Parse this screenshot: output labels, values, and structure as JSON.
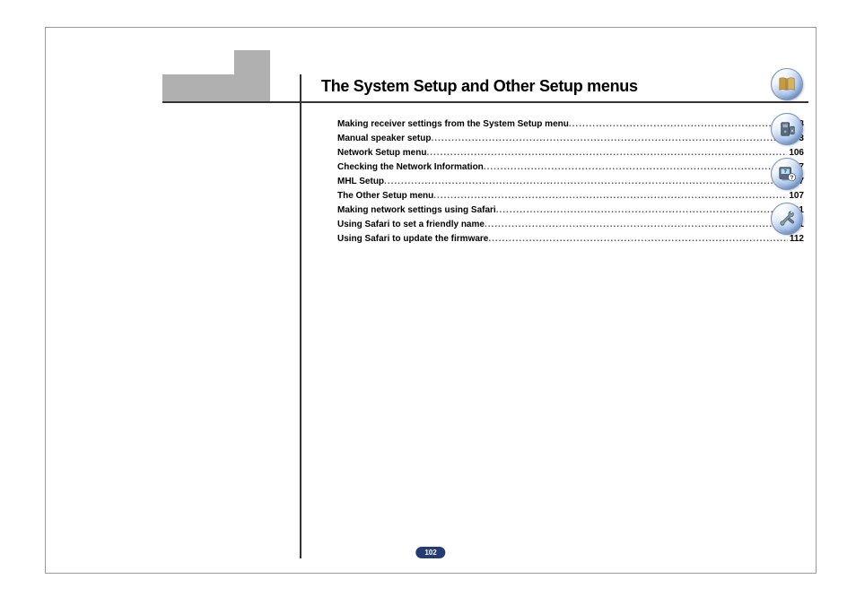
{
  "title": "The System Setup and Other Setup menus",
  "page_number": "102",
  "toc": [
    {
      "label": "Making receiver settings from the System Setup menu",
      "page": "103"
    },
    {
      "label": "Manual speaker setup",
      "page": "103"
    },
    {
      "label": "Network Setup menu",
      "page": "106"
    },
    {
      "label": "Checking the Network Information",
      "page": "107"
    },
    {
      "label": "MHL Setup",
      "page": "107"
    },
    {
      "label": "The Other Setup menu",
      "page": "107"
    },
    {
      "label": "Making network settings using Safari",
      "page": "111"
    },
    {
      "label": "Using Safari to set a friendly name",
      "page": "111"
    },
    {
      "label": "Using Safari to update the firmware",
      "page": "112"
    }
  ],
  "colors": {
    "tab": "#b0b0b0",
    "rule": "#333333",
    "badge_bg": "#243b73",
    "icon_gradient_light": "#e8f0fb",
    "icon_gradient_dark": "#6f9bd8"
  },
  "side_icons": [
    {
      "name": "book-icon"
    },
    {
      "name": "device-icon"
    },
    {
      "name": "help-icon"
    },
    {
      "name": "tools-icon"
    }
  ]
}
